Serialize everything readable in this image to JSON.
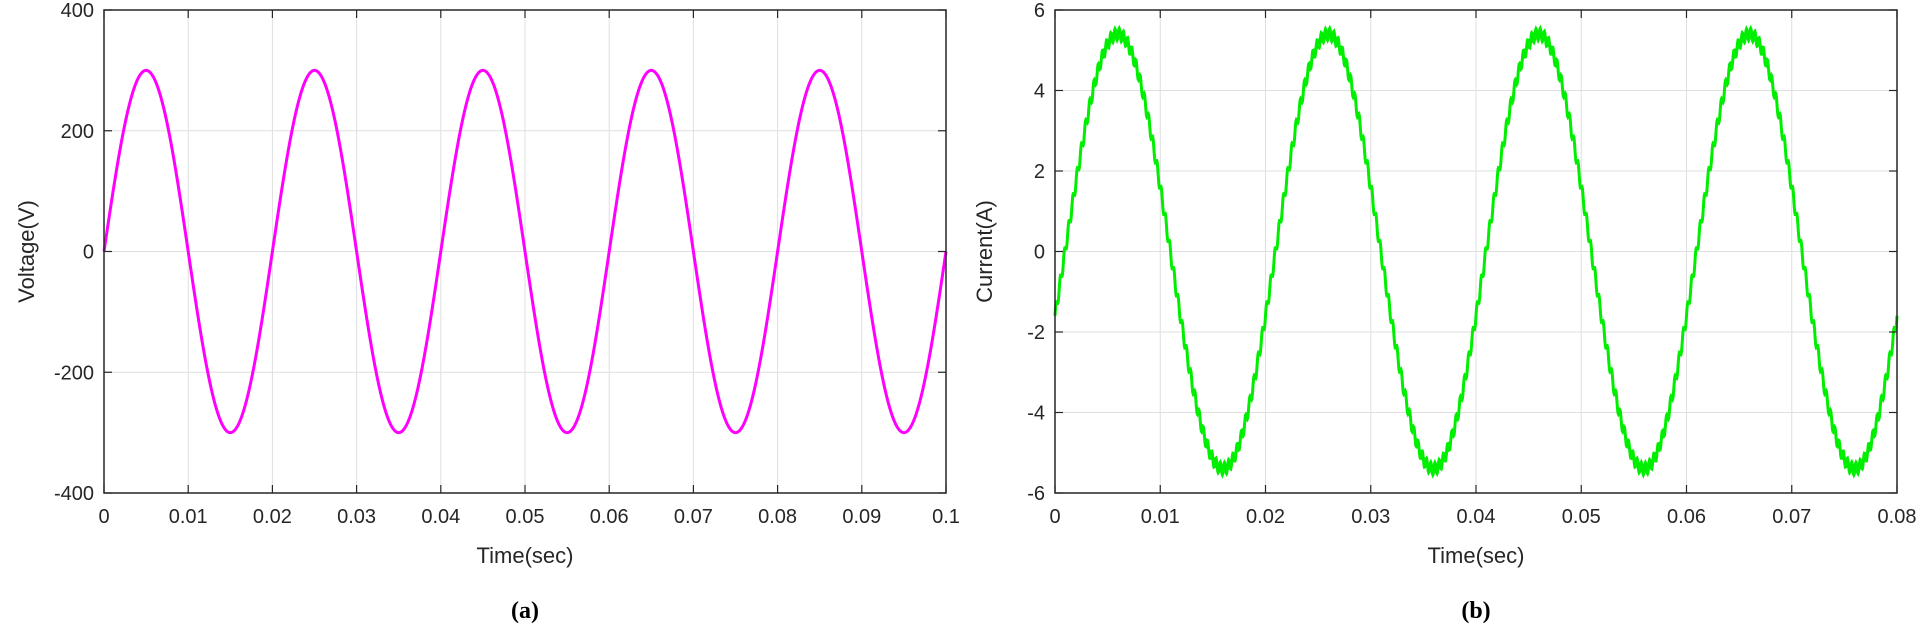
{
  "chart_data": [
    {
      "type": "line",
      "caption": "(a)",
      "xlabel": "Time(sec)",
      "ylabel": "Voltage(V)",
      "xlim": [
        0,
        0.1
      ],
      "ylim": [
        -400,
        400
      ],
      "xticks": [
        0,
        0.01,
        0.02,
        0.03,
        0.04,
        0.05,
        0.06,
        0.07,
        0.08,
        0.09,
        0.1
      ],
      "xtick_labels": [
        "0",
        "0.01",
        "0.02",
        "0.03",
        "0.04",
        "0.05",
        "0.06",
        "0.07",
        "0.08",
        "0.09",
        "0.1"
      ],
      "yticks": [
        -400,
        -200,
        0,
        200,
        400
      ],
      "ytick_labels": [
        "-400",
        "-200",
        "0",
        "200",
        "400"
      ],
      "grid": true,
      "series": [
        {
          "amplitude": 300,
          "frequency_hz": 50,
          "phase": 0,
          "color": "#ff00ff",
          "ripple": 0
        }
      ]
    },
    {
      "type": "line",
      "caption": "(b)",
      "xlabel": "Time(sec)",
      "ylabel": "Current(A)",
      "xlim": [
        0,
        0.08
      ],
      "ylim": [
        -6,
        6
      ],
      "xticks": [
        0,
        0.01,
        0.02,
        0.03,
        0.04,
        0.05,
        0.06,
        0.07,
        0.08
      ],
      "xtick_labels": [
        "0",
        "0.01",
        "0.02",
        "0.03",
        "0.04",
        "0.05",
        "0.06",
        "0.07",
        "0.08"
      ],
      "yticks": [
        -6,
        -4,
        -2,
        0,
        2,
        4,
        6
      ],
      "ytick_labels": [
        "-6",
        "-4",
        "-2",
        "0",
        "2",
        "4",
        "6"
      ],
      "grid": true,
      "series": [
        {
          "amplitude": 5.4,
          "frequency_hz": 50,
          "phase": -0.3,
          "color": "#00ee00",
          "ripple": 0.15
        }
      ]
    }
  ]
}
